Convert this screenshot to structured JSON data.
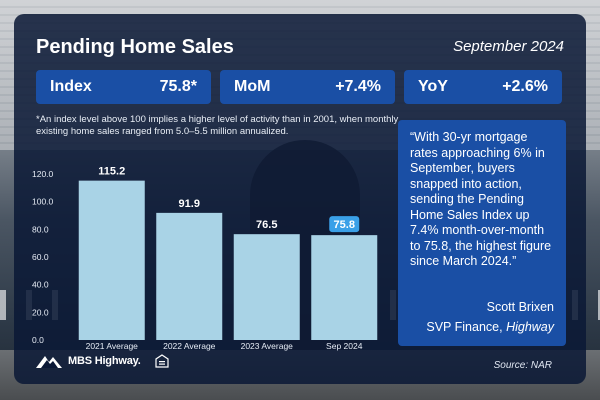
{
  "header": {
    "title": "Pending Home Sales",
    "date": "September 2024"
  },
  "stats": [
    {
      "label": "Index",
      "value": "75.8*"
    },
    {
      "label": "MoM",
      "value": "+7.4%"
    },
    {
      "label": "YoY",
      "value": "+2.6%"
    }
  ],
  "note": "*An index level above 100 implies a higher level of activity than in 2001, when monthly existing home sales ranged from 5.0–5.5 million annualized.",
  "quote": {
    "text": "“With 30-yr mortgage rates approaching 6% in September, buyers snapped into action, sending the Pending Home Sales Index up 7.4% month-over-month to 75.8, the highest figure since March 2024.”",
    "author": "Scott Brixen",
    "role": "SVP Finance,",
    "company": "Highway"
  },
  "footer": {
    "logo_text": "MBS Highway.",
    "source": "Source: NAR"
  },
  "colors": {
    "card": "#0a1836",
    "accent": "#1a4fa5",
    "bar": "#a9d3e6",
    "highlight_label": "#3aa0e8"
  },
  "chart_data": {
    "type": "bar",
    "categories": [
      "2021 Average",
      "2022 Average",
      "2023 Average",
      "Sep 2024"
    ],
    "values": [
      115.2,
      91.9,
      76.5,
      75.8
    ],
    "value_labels": [
      "115.2",
      "91.9",
      "76.5",
      "75.8"
    ],
    "highlight_index": 3,
    "ylim": [
      0,
      120
    ],
    "yticks": [
      "0.0",
      "20.0",
      "40.0",
      "60.0",
      "80.0",
      "100.0",
      "120.0"
    ],
    "grid": false
  }
}
